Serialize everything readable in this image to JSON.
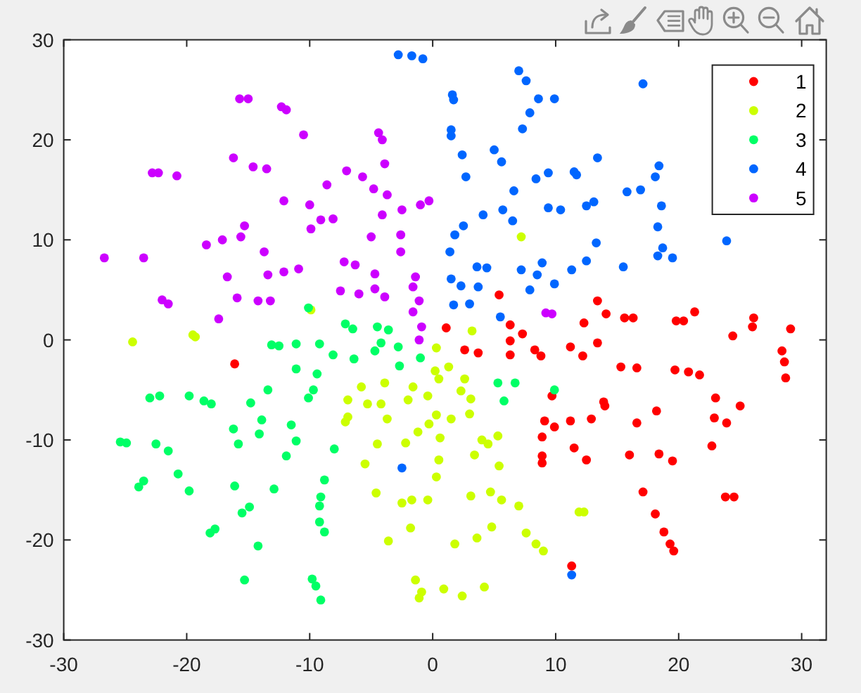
{
  "chart_data": {
    "type": "scatter",
    "xlim": [
      -30,
      32
    ],
    "xticks": [
      -30,
      -20,
      -10,
      0,
      10,
      20,
      30
    ],
    "ylim": [
      -30,
      30
    ],
    "yticks": [
      -30,
      -20,
      -10,
      0,
      10,
      20,
      30
    ],
    "marker": "circle",
    "legend": "top right",
    "series": [
      {
        "name": "1",
        "color": "#ff0000",
        "x": [
          -16.1,
          5.4,
          1.1,
          6.3,
          7.3,
          6.3,
          2.6,
          3.7,
          6.3,
          8.3,
          8.8,
          11.2,
          9.7,
          9.1,
          9.9,
          8.9,
          8.9,
          8.9,
          11.3,
          13.4,
          14.1,
          12.3,
          15.6,
          16.3,
          19.8,
          20.4,
          21.3,
          26.1,
          26.0,
          29.1,
          24.4,
          13.4,
          28.4,
          12.2,
          15.3,
          16.6,
          19.7,
          20.8,
          21.7,
          28.6,
          28.7,
          13.9,
          14.0,
          11.2,
          12.9,
          16.6,
          18.2,
          23.0,
          25.0,
          22.9,
          23.9,
          11.5,
          12.5,
          16.0,
          18.4,
          19.5,
          22.7,
          17.1,
          23.8,
          24.5,
          18.1,
          18.8,
          19.3,
          19.6
        ],
        "values": [
          -2.4,
          4.5,
          1.2,
          1.5,
          0.6,
          -0.1,
          -1.0,
          -1.3,
          -1.5,
          -1.0,
          -1.6,
          -0.7,
          -5.6,
          -8.1,
          -8.7,
          -9.7,
          -11.6,
          -12.3,
          -22.6,
          3.9,
          2.6,
          1.7,
          2.2,
          2.2,
          1.9,
          1.9,
          2.8,
          2.2,
          1.3,
          1.1,
          0.4,
          -0.3,
          -1.1,
          -1.6,
          -2.7,
          -2.8,
          -3.0,
          -3.2,
          -3.5,
          -2.2,
          -3.8,
          -6.2,
          -6.6,
          -8.1,
          -7.9,
          -8.3,
          -7.1,
          -5.8,
          -6.6,
          -7.8,
          -8.3,
          -10.8,
          -12.0,
          -11.5,
          -11.4,
          -12.1,
          -10.6,
          -15.2,
          -15.7,
          -15.7,
          -17.4,
          -19.2,
          -20.4,
          -21.1
        ]
      },
      {
        "name": "2",
        "color": "#ccff00",
        "x": [
          -24.4,
          -19.5,
          -19.3,
          -9.9,
          7.2,
          3.2,
          0.3,
          1.3,
          0.2,
          0.5,
          2.6,
          2.3,
          3.1,
          3.0,
          1.5,
          0.3,
          -0.4,
          -1.6,
          -2.0,
          -3.9,
          -5.8,
          -6.9,
          -5.3,
          -4.2,
          -3.7,
          -6.9,
          -7.1,
          -0.3,
          -1.2,
          -2.2,
          0.6,
          -4.5,
          -5.5,
          0.5,
          0.3,
          4.0,
          4.5,
          5.3,
          3.4,
          5.4,
          -4.6,
          -2.5,
          -1.7,
          -0.4,
          3.1,
          4.7,
          5.6,
          7.0,
          11.9,
          12.3,
          -1.8,
          -3.6,
          1.8,
          3.6,
          4.8,
          7.6,
          8.4,
          9.0,
          -1.4,
          -0.9,
          -1.1,
          0.9,
          2.4,
          4.2
        ],
        "values": [
          -0.2,
          0.5,
          0.3,
          3.0,
          10.3,
          0.9,
          -0.8,
          -2.7,
          -3.1,
          -3.9,
          -3.9,
          -5.1,
          -5.9,
          -7.4,
          -7.9,
          -7.5,
          -5.6,
          -4.7,
          -6.0,
          -4.3,
          -4.7,
          -6.0,
          -6.4,
          -6.4,
          -7.9,
          -7.7,
          -8.2,
          -8.4,
          -9.2,
          -10.3,
          -9.8,
          -10.4,
          -12.4,
          -12.0,
          -13.7,
          -10.0,
          -10.4,
          -9.6,
          -11.5,
          -12.6,
          -15.3,
          -16.3,
          -16.0,
          -16.0,
          -15.6,
          -15.2,
          -16.0,
          -16.6,
          -17.2,
          -17.2,
          -18.8,
          -20.1,
          -20.4,
          -19.8,
          -18.7,
          -19.3,
          -20.4,
          -21.1,
          -24.0,
          -25.2,
          -25.8,
          -24.9,
          -25.6,
          -24.7
        ]
      },
      {
        "name": "3",
        "color": "#00ff66",
        "x": [
          -10.1,
          -13.1,
          -12.5,
          -11.1,
          -9.2,
          -11.1,
          -9.4,
          -9.7,
          -10.1,
          -13.4,
          -23.0,
          -22.2,
          -19.8,
          -18.6,
          -18.0,
          -14.8,
          -13.9,
          -16.2,
          -14.1,
          -11.5,
          -11.1,
          -15.8,
          -11.9,
          -25.4,
          -24.9,
          -22.5,
          -21.5,
          -20.7,
          -23.5,
          -23.9,
          -19.8,
          -16.1,
          -12.9,
          -14.9,
          -15.5,
          -18.1,
          -17.7,
          -14.2,
          -15.3,
          -9.8,
          -9.5,
          -9.1,
          -8.1,
          -6.4,
          -4.7,
          -4.2,
          -2.8,
          -2.7,
          -1.0,
          5.3,
          6.7,
          5.8,
          9.9,
          -8.0,
          -8.8,
          -9.1,
          -9.2,
          -9.2,
          -8.8,
          -7.1,
          -6.5,
          -4.5,
          -3.6
        ],
        "values": [
          3.2,
          -0.5,
          -0.6,
          -0.4,
          -0.4,
          -2.9,
          -3.4,
          -5.0,
          -5.8,
          -5.0,
          -5.8,
          -5.6,
          -5.6,
          -6.1,
          -6.4,
          -6.3,
          -8.0,
          -8.9,
          -9.4,
          -8.5,
          -10.1,
          -10.4,
          -11.6,
          -10.2,
          -10.3,
          -10.4,
          -11.1,
          -13.4,
          -14.1,
          -14.7,
          -15.1,
          -14.6,
          -14.9,
          -16.7,
          -17.3,
          -19.3,
          -18.9,
          -20.6,
          -24.0,
          -23.9,
          -24.6,
          -26.0,
          -1.5,
          -1.9,
          -1.1,
          -0.3,
          -0.7,
          -2.6,
          -1.8,
          -4.3,
          -4.3,
          -6.1,
          -5.0,
          -10.9,
          -14.0,
          -15.7,
          -16.6,
          -18.2,
          -19.2,
          1.6,
          1.1,
          1.3,
          1.0
        ]
      },
      {
        "name": "4",
        "color": "#0066ff",
        "x": [
          -2.5,
          11.3,
          -2.8,
          -1.7,
          -0.8,
          7.0,
          7.6,
          1.6,
          1.7,
          8.6,
          9.9,
          7.9,
          7.3,
          1.5,
          1.5,
          2.4,
          5.0,
          5.6,
          2.7,
          8.4,
          9.4,
          11.5,
          11.7,
          6.6,
          4.1,
          5.7,
          6.5,
          9.4,
          10.4,
          2.5,
          1.8,
          1.4,
          3.6,
          4.4,
          7.2,
          8.9,
          8.5,
          11.3,
          1.5,
          2.3,
          3.7,
          7.9,
          9.9,
          1.7,
          3.0,
          5.5,
          17.1,
          13.4,
          18.4,
          18.1,
          15.8,
          16.9,
          12.5,
          13.1,
          18.6,
          18.3,
          13.3,
          18.7,
          18.3,
          19.5,
          23.9,
          12.5,
          15.5
        ],
        "values": [
          -12.8,
          -23.5,
          28.5,
          28.4,
          28.1,
          26.9,
          25.9,
          24.5,
          24.0,
          24.1,
          24.1,
          22.7,
          21.1,
          21.0,
          20.4,
          18.5,
          19.0,
          17.8,
          16.3,
          16.1,
          16.7,
          16.8,
          16.5,
          14.9,
          12.5,
          13.0,
          11.9,
          13.2,
          13.0,
          11.4,
          10.5,
          8.8,
          7.3,
          7.2,
          7.0,
          7.7,
          6.5,
          7.0,
          6.1,
          5.4,
          5.3,
          5.0,
          5.6,
          3.5,
          3.6,
          2.3,
          25.6,
          18.2,
          17.4,
          16.3,
          14.8,
          15.0,
          13.4,
          13.8,
          13.4,
          11.3,
          9.7,
          9.2,
          8.4,
          8.2,
          9.9,
          7.9,
          7.3
        ]
      },
      {
        "name": "5",
        "color": "#cc00ff",
        "x": [
          -15.7,
          -15.0,
          -12.3,
          -11.9,
          -10.5,
          -16.2,
          -14.6,
          -13.5,
          -22.8,
          -22.3,
          -20.8,
          -12.1,
          -10.0,
          -9.9,
          -15.3,
          -15.6,
          -17.1,
          -18.4,
          -26.7,
          -23.5,
          -13.7,
          -16.7,
          -13.4,
          -12.1,
          -10.9,
          -15.9,
          -22.0,
          -21.5,
          -14.2,
          -13.2,
          -17.4,
          -4.4,
          -4.1,
          -3.9,
          -7.0,
          -5.7,
          -8.6,
          -4.8,
          -3.7,
          -4.1,
          -2.5,
          -1.0,
          -0.3,
          -9.1,
          -8.1,
          -5.0,
          -2.6,
          -2.6,
          -7.2,
          -6.3,
          -4.7,
          -1.4,
          -1.6,
          -7.5,
          -6.0,
          -4.7,
          -3.9,
          -1.1,
          -1.6,
          -0.9,
          -1.1,
          9.2,
          9.7
        ],
        "values": [
          24.1,
          24.1,
          23.3,
          23.0,
          20.5,
          18.2,
          17.3,
          17.1,
          16.7,
          16.7,
          16.4,
          13.9,
          13.5,
          11.1,
          11.4,
          10.3,
          10.0,
          9.5,
          8.2,
          8.2,
          8.8,
          6.3,
          6.5,
          6.8,
          7.1,
          4.2,
          4.0,
          3.6,
          3.9,
          3.9,
          2.1,
          20.7,
          20.0,
          17.6,
          16.9,
          16.3,
          15.5,
          15.1,
          14.5,
          12.5,
          13.0,
          13.5,
          13.9,
          12.0,
          12.1,
          10.3,
          10.5,
          8.8,
          7.8,
          7.5,
          6.6,
          6.3,
          5.3,
          4.9,
          4.6,
          5.1,
          4.3,
          3.9,
          2.8,
          1.3,
          0.0,
          2.7,
          2.6
        ]
      }
    ]
  }
}
